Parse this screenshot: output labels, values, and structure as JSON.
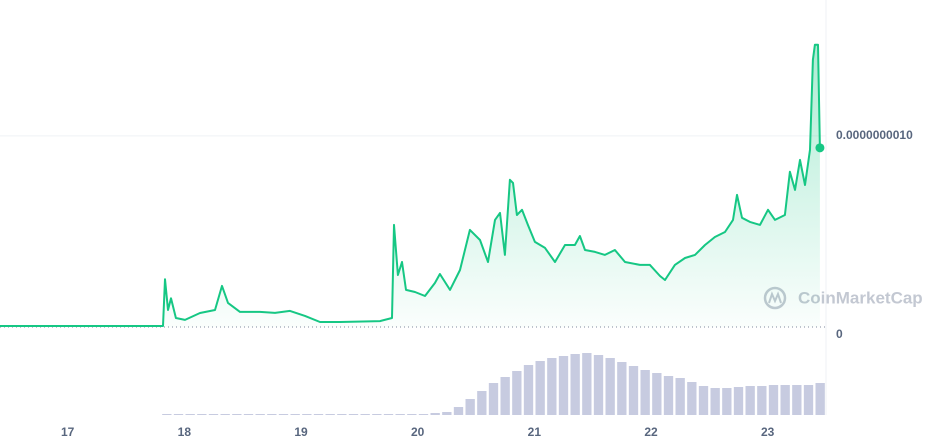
{
  "chart_data": [
    {
      "type": "line",
      "color": "#16c784",
      "watermark": "CoinMarketCap",
      "x": [
        16.42,
        17.817,
        17.834,
        17.86,
        17.886,
        17.928,
        18.006,
        18.134,
        18.263,
        18.323,
        18.374,
        18.477,
        18.648,
        18.777,
        18.906,
        19.034,
        19.163,
        19.334,
        19.677,
        19.78,
        19.797,
        19.831,
        19.866,
        19.9,
        19.977,
        20.063,
        20.148,
        20.191,
        20.277,
        20.363,
        20.448,
        20.534,
        20.603,
        20.663,
        20.706,
        20.748,
        20.791,
        20.817,
        20.851,
        20.894,
        20.945,
        21.005,
        21.091,
        21.177,
        21.263,
        21.348,
        21.391,
        21.434,
        21.52,
        21.605,
        21.691,
        21.777,
        21.905,
        21.991,
        22.077,
        22.12,
        22.205,
        22.291,
        22.377,
        22.463,
        22.548,
        22.634,
        22.703,
        22.737,
        22.78,
        22.848,
        22.934,
        23.003,
        23.063,
        23.148,
        23.191,
        23.234,
        23.277,
        23.32,
        23.363,
        23.388,
        23.405,
        23.431,
        23.448
      ],
      "values": [
        5e-12,
        5e-12,
        2.5e-10,
        8.9e-11,
        1.5e-10,
        4.7e-11,
        3.7e-11,
        7.3e-11,
        8.9e-11,
        2.15e-10,
        1.26e-10,
        7.9e-11,
        7.9e-11,
        7.4e-11,
        8.4e-11,
        5.8e-11,
        2.6e-11,
        2.6e-11,
        3.1e-11,
        4.7e-11,
        5.34e-10,
        2.72e-10,
        3.4e-10,
        1.94e-10,
        1.83e-10,
        1.62e-10,
        2.3e-10,
        2.77e-10,
        1.94e-10,
        2.98e-10,
        5.08e-10,
        4.55e-10,
        3.4e-10,
        5.6e-10,
        5.97e-10,
        3.77e-10,
        7.7e-10,
        7.54e-10,
        5.86e-10,
        6.13e-10,
        5.34e-10,
        4.45e-10,
        4.14e-10,
        3.4e-10,
        4.29e-10,
        4.29e-10,
        4.76e-10,
        4.03e-10,
        3.93e-10,
        3.77e-10,
        4.03e-10,
        3.4e-10,
        3.25e-10,
        3.25e-10,
        2.67e-10,
        2.46e-10,
        3.25e-10,
        3.61e-10,
        3.77e-10,
        4.29e-10,
        4.71e-10,
        4.97e-10,
        5.6e-10,
        6.91e-10,
        5.71e-10,
        5.5e-10,
        5.34e-10,
        6.13e-10,
        5.6e-10,
        5.86e-10,
        8.12e-10,
        7.17e-10,
        8.74e-10,
        7.43e-10,
        9.27e-10,
        1.398e-09,
        1.476e-09,
        1.476e-09,
        9.37e-10
      ],
      "xlim": [
        16.42,
        23.5
      ],
      "xticks": [
        17,
        18,
        19,
        20,
        21,
        22,
        23
      ],
      "ylim": [
        0,
        1.7e-09
      ],
      "yticks": [
        0,
        {
          "value": 1e-09,
          "label": "0.0000000010"
        }
      ],
      "grid": true
    },
    {
      "type": "bar",
      "color": "#c7cbe0",
      "x": [
        16.45,
        16.55,
        16.65,
        16.75,
        16.85,
        16.95,
        17.05,
        17.15,
        17.25,
        17.35,
        17.45,
        17.55,
        17.65,
        17.75,
        17.85,
        17.95,
        18.05,
        18.15,
        18.25,
        18.35,
        18.45,
        18.55,
        18.65,
        18.75,
        18.85,
        18.95,
        19.05,
        19.15,
        19.25,
        19.35,
        19.45,
        19.55,
        19.65,
        19.75,
        19.85,
        19.95,
        20.05,
        20.15,
        20.25,
        20.35,
        20.45,
        20.55,
        20.65,
        20.75,
        20.85,
        20.95,
        21.05,
        21.15,
        21.25,
        21.35,
        21.45,
        21.55,
        21.65,
        21.75,
        21.85,
        21.95,
        22.05,
        22.15,
        22.25,
        22.35,
        22.45,
        22.55,
        22.65,
        22.75,
        22.85,
        22.95,
        23.05,
        23.15,
        23.25,
        23.35,
        23.45
      ],
      "values": [
        0,
        0,
        0,
        0,
        0,
        0,
        0,
        0,
        0,
        0,
        0,
        0,
        0,
        0,
        1,
        1,
        1,
        1,
        1,
        1,
        1,
        1,
        1,
        1,
        1,
        1,
        1,
        1,
        1,
        1,
        1,
        1,
        1,
        1,
        1,
        1,
        1,
        2,
        3,
        8,
        16,
        24,
        32,
        38,
        44,
        50,
        54,
        57,
        59,
        61,
        62,
        60,
        57,
        53,
        49,
        45,
        42,
        39,
        37,
        33,
        29,
        27,
        27,
        28,
        29,
        29,
        30,
        30,
        30,
        30,
        32
      ]
    }
  ]
}
